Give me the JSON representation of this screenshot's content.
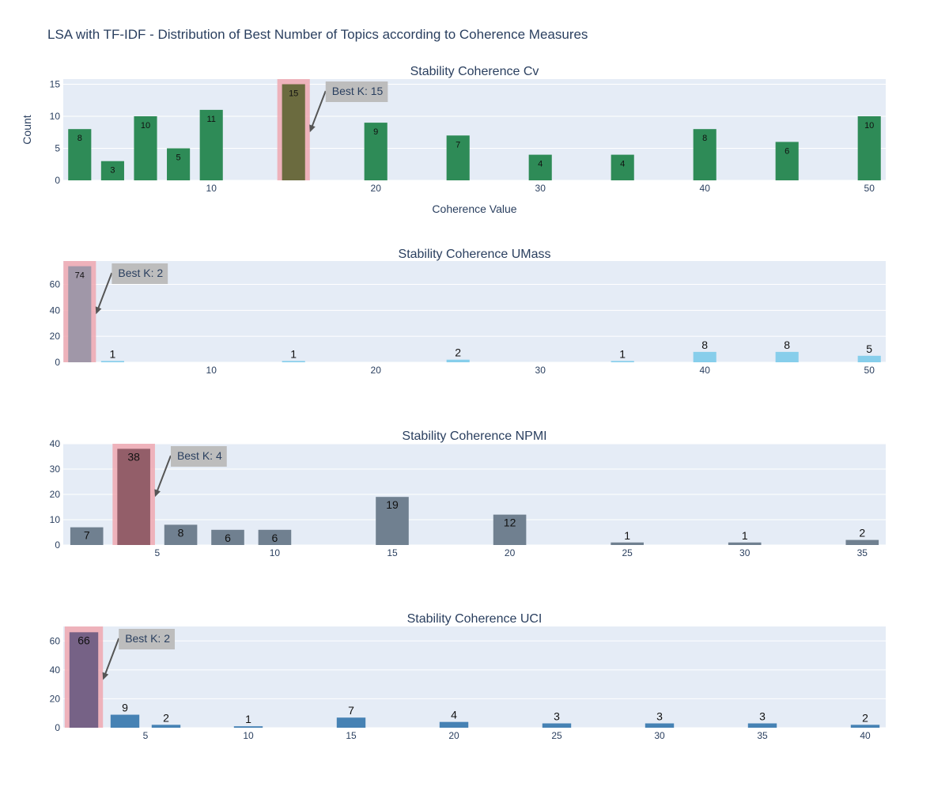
{
  "title": "LSA with TF-IDF - Distribution of Best Number of Topics according to Coherence Measures",
  "colors": {
    "plot_bg": "#e5ecf6",
    "grid": "#ffffff",
    "text": "#2a3f5f",
    "highlight": "#f0a8b0",
    "annotation_bg": "#bdbdbd",
    "arrow": "#555555"
  },
  "chart_data": [
    {
      "type": "bar",
      "title": "Stability Coherence Cv",
      "xlabel": "Coherence Value",
      "ylabel": "Count",
      "color": "#2e8b57",
      "highlight_bar_color": "#6b6b3f",
      "x": [
        2,
        4,
        6,
        8,
        10,
        15,
        20,
        25,
        30,
        35,
        40,
        45,
        50
      ],
      "values": [
        8,
        3,
        10,
        5,
        11,
        15,
        9,
        7,
        4,
        4,
        8,
        6,
        10
      ],
      "labels": [
        "8",
        "3",
        "10",
        "5",
        "11",
        "15",
        "9",
        "7",
        "4",
        "4",
        "8",
        "6",
        "10"
      ],
      "xticks": [
        10,
        20,
        30,
        40,
        50
      ],
      "yticks": [
        0,
        5,
        10,
        15
      ],
      "ylim": [
        0,
        15.8
      ],
      "xlim": [
        1,
        51
      ],
      "best_k": 15,
      "annotation": "Best K: 15"
    },
    {
      "type": "bar",
      "title": "Stability Coherence UMass",
      "xlabel": "",
      "ylabel": "",
      "color": "#87ceeb",
      "highlight_bar_color": "#a097a8",
      "x": [
        2,
        4,
        15,
        25,
        35,
        40,
        45,
        50
      ],
      "values": [
        74,
        1,
        1,
        2,
        1,
        8,
        8,
        5
      ],
      "labels": [
        "74",
        "1",
        "1",
        "2",
        "1",
        "8",
        "8",
        "5"
      ],
      "xticks": [
        10,
        20,
        30,
        40,
        50
      ],
      "yticks": [
        0,
        20,
        40,
        60
      ],
      "ylim": [
        0,
        78
      ],
      "xlim": [
        1,
        51
      ],
      "best_k": 2,
      "annotation": "Best K: 2"
    },
    {
      "type": "bar",
      "title": "Stability Coherence NPMI",
      "xlabel": "",
      "ylabel": "",
      "color": "#708090",
      "highlight_bar_color": "#935e69",
      "x": [
        2,
        4,
        6,
        8,
        10,
        15,
        20,
        25,
        30,
        35
      ],
      "values": [
        7,
        38,
        8,
        6,
        6,
        19,
        12,
        1,
        1,
        2
      ],
      "labels": [
        "7",
        "38",
        "8",
        "6",
        "6",
        "19",
        "12",
        "1",
        "1",
        "2"
      ],
      "xticks": [
        5,
        10,
        15,
        20,
        25,
        30,
        35
      ],
      "yticks": [
        0,
        10,
        20,
        30,
        40
      ],
      "ylim": [
        0,
        40
      ],
      "xlim": [
        1,
        36
      ],
      "best_k": 4,
      "annotation": "Best K: 4"
    },
    {
      "type": "bar",
      "title": "Stability Coherence UCI",
      "xlabel": "",
      "ylabel": "",
      "color": "#4682b4",
      "highlight_bar_color": "#766286",
      "x": [
        2,
        4,
        6,
        10,
        15,
        20,
        25,
        30,
        35,
        40
      ],
      "values": [
        66,
        9,
        2,
        1,
        7,
        4,
        3,
        3,
        3,
        2
      ],
      "labels": [
        "66",
        "9",
        "2",
        "1",
        "7",
        "4",
        "3",
        "3",
        "3",
        "2"
      ],
      "xticks": [
        5,
        10,
        15,
        20,
        25,
        30,
        35,
        40
      ],
      "yticks": [
        0,
        20,
        40,
        60
      ],
      "ylim": [
        0,
        70
      ],
      "xlim": [
        1,
        41
      ],
      "best_k": 2,
      "annotation": "Best K: 2"
    }
  ]
}
